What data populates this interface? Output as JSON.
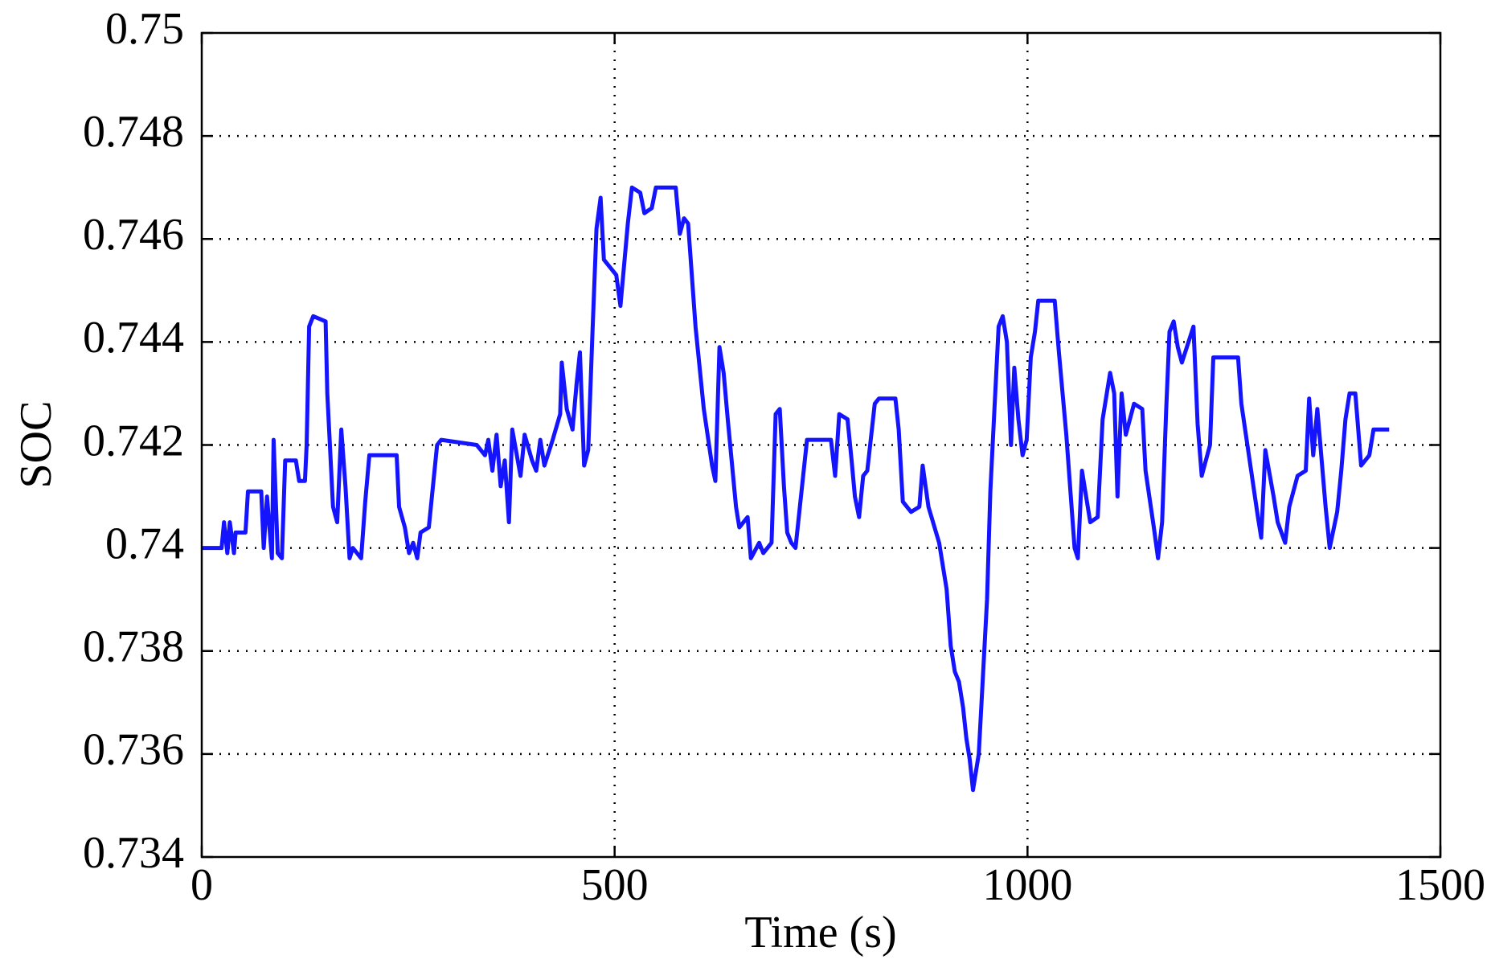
{
  "chart_data": {
    "type": "line",
    "xlabel": "Time (s)",
    "ylabel": "SOC",
    "color": "#1414ff",
    "grid": true,
    "xlim": [
      0,
      1500
    ],
    "xticks": [
      0,
      500,
      1000,
      1500
    ],
    "ylim": [
      0.734,
      0.75
    ],
    "yticks": [
      0.734,
      0.736,
      0.738,
      0.74,
      0.742,
      0.744,
      0.746,
      0.748,
      0.75
    ],
    "x": [
      0,
      24,
      27,
      31,
      34,
      39,
      41,
      53,
      56,
      72,
      75,
      79,
      85,
      87,
      92,
      97,
      101,
      114,
      118,
      125,
      127,
      130,
      135,
      150,
      152,
      159,
      164,
      169,
      174,
      179,
      183,
      193,
      198,
      203,
      236,
      239,
      246,
      251,
      256,
      261,
      265,
      275,
      285,
      290,
      333,
      343,
      347,
      352,
      357,
      362,
      367,
      372,
      376,
      386,
      391,
      400,
      405,
      410,
      415,
      425,
      434,
      436,
      442,
      449,
      454,
      458,
      463,
      468,
      473,
      478,
      483,
      487,
      492,
      502,
      507,
      516,
      521,
      531,
      536,
      545,
      550,
      574,
      579,
      584,
      589,
      598,
      608,
      618,
      622,
      627,
      632,
      637,
      647,
      651,
      661,
      665,
      675,
      680,
      690,
      695,
      700,
      705,
      709,
      714,
      719,
      729,
      733,
      762,
      767,
      772,
      782,
      787,
      791,
      796,
      801,
      806,
      815,
      820,
      840,
      844,
      849,
      859,
      869,
      873,
      880,
      893,
      902,
      907,
      912,
      917,
      922,
      926,
      930,
      934,
      941,
      951,
      955,
      960,
      965,
      970,
      975,
      980,
      984,
      989,
      994,
      999,
      1004,
      1009,
      1013,
      1033,
      1038,
      1047,
      1057,
      1061,
      1066,
      1076,
      1085,
      1091,
      1100,
      1105,
      1109,
      1114,
      1119,
      1129,
      1139,
      1143,
      1153,
      1158,
      1163,
      1168,
      1172,
      1177,
      1182,
      1187,
      1197,
      1201,
      1206,
      1211,
      1221,
      1225,
      1255,
      1259,
      1269,
      1279,
      1283,
      1288,
      1298,
      1303,
      1312,
      1317,
      1327,
      1337,
      1341,
      1346,
      1351,
      1361,
      1366,
      1375,
      1380,
      1385,
      1390,
      1397,
      1404,
      1414,
      1419,
      1438
    ],
    "values": [
      0.74,
      0.74,
      0.7405,
      0.7399,
      0.7405,
      0.7399,
      0.7403,
      0.7403,
      0.7411,
      0.7411,
      0.74,
      0.741,
      0.7398,
      0.7421,
      0.7399,
      0.7398,
      0.7417,
      0.7417,
      0.7413,
      0.7413,
      0.742,
      0.7443,
      0.7445,
      0.7444,
      0.743,
      0.7408,
      0.7405,
      0.7423,
      0.7412,
      0.7398,
      0.74,
      0.7398,
      0.7409,
      0.7418,
      0.7418,
      0.7408,
      0.7404,
      0.7399,
      0.7401,
      0.7398,
      0.7403,
      0.7404,
      0.742,
      0.7421,
      0.742,
      0.7418,
      0.7421,
      0.7415,
      0.7422,
      0.7412,
      0.7417,
      0.7405,
      0.7423,
      0.7414,
      0.7422,
      0.7417,
      0.7415,
      0.7421,
      0.7416,
      0.7421,
      0.7426,
      0.7436,
      0.7427,
      0.7423,
      0.7432,
      0.7438,
      0.7416,
      0.7419,
      0.7441,
      0.7462,
      0.7468,
      0.7456,
      0.7455,
      0.7453,
      0.7447,
      0.7463,
      0.747,
      0.7469,
      0.7465,
      0.7466,
      0.747,
      0.747,
      0.7461,
      0.7464,
      0.7463,
      0.7443,
      0.7427,
      0.7416,
      0.7413,
      0.7439,
      0.7434,
      0.7425,
      0.7408,
      0.7404,
      0.7406,
      0.7398,
      0.7401,
      0.7399,
      0.7401,
      0.7426,
      0.7427,
      0.7412,
      0.7403,
      0.7401,
      0.74,
      0.7415,
      0.7421,
      0.7421,
      0.7414,
      0.7426,
      0.7425,
      0.7417,
      0.741,
      0.7406,
      0.7414,
      0.7415,
      0.7428,
      0.7429,
      0.7429,
      0.7423,
      0.7409,
      0.7407,
      0.7408,
      0.7416,
      0.7408,
      0.7401,
      0.7392,
      0.7381,
      0.7376,
      0.7374,
      0.7369,
      0.7363,
      0.7359,
      0.7353,
      0.736,
      0.739,
      0.7411,
      0.7427,
      0.7443,
      0.7445,
      0.744,
      0.742,
      0.7435,
      0.7425,
      0.7418,
      0.7421,
      0.7437,
      0.7442,
      0.7448,
      0.7448,
      0.7438,
      0.7422,
      0.74,
      0.7398,
      0.7415,
      0.7405,
      0.7406,
      0.7425,
      0.7434,
      0.743,
      0.741,
      0.743,
      0.7422,
      0.7428,
      0.7427,
      0.7415,
      0.7404,
      0.7398,
      0.7405,
      0.7427,
      0.7442,
      0.7444,
      0.7439,
      0.7436,
      0.7441,
      0.7443,
      0.7424,
      0.7414,
      0.742,
      0.7437,
      0.7437,
      0.7428,
      0.7417,
      0.7406,
      0.7402,
      0.7419,
      0.741,
      0.7405,
      0.7401,
      0.7408,
      0.7414,
      0.7415,
      0.7429,
      0.7418,
      0.7427,
      0.7408,
      0.74,
      0.7407,
      0.7415,
      0.7425,
      0.743,
      0.743,
      0.7416,
      0.7418,
      0.7423,
      0.7423
    ]
  }
}
